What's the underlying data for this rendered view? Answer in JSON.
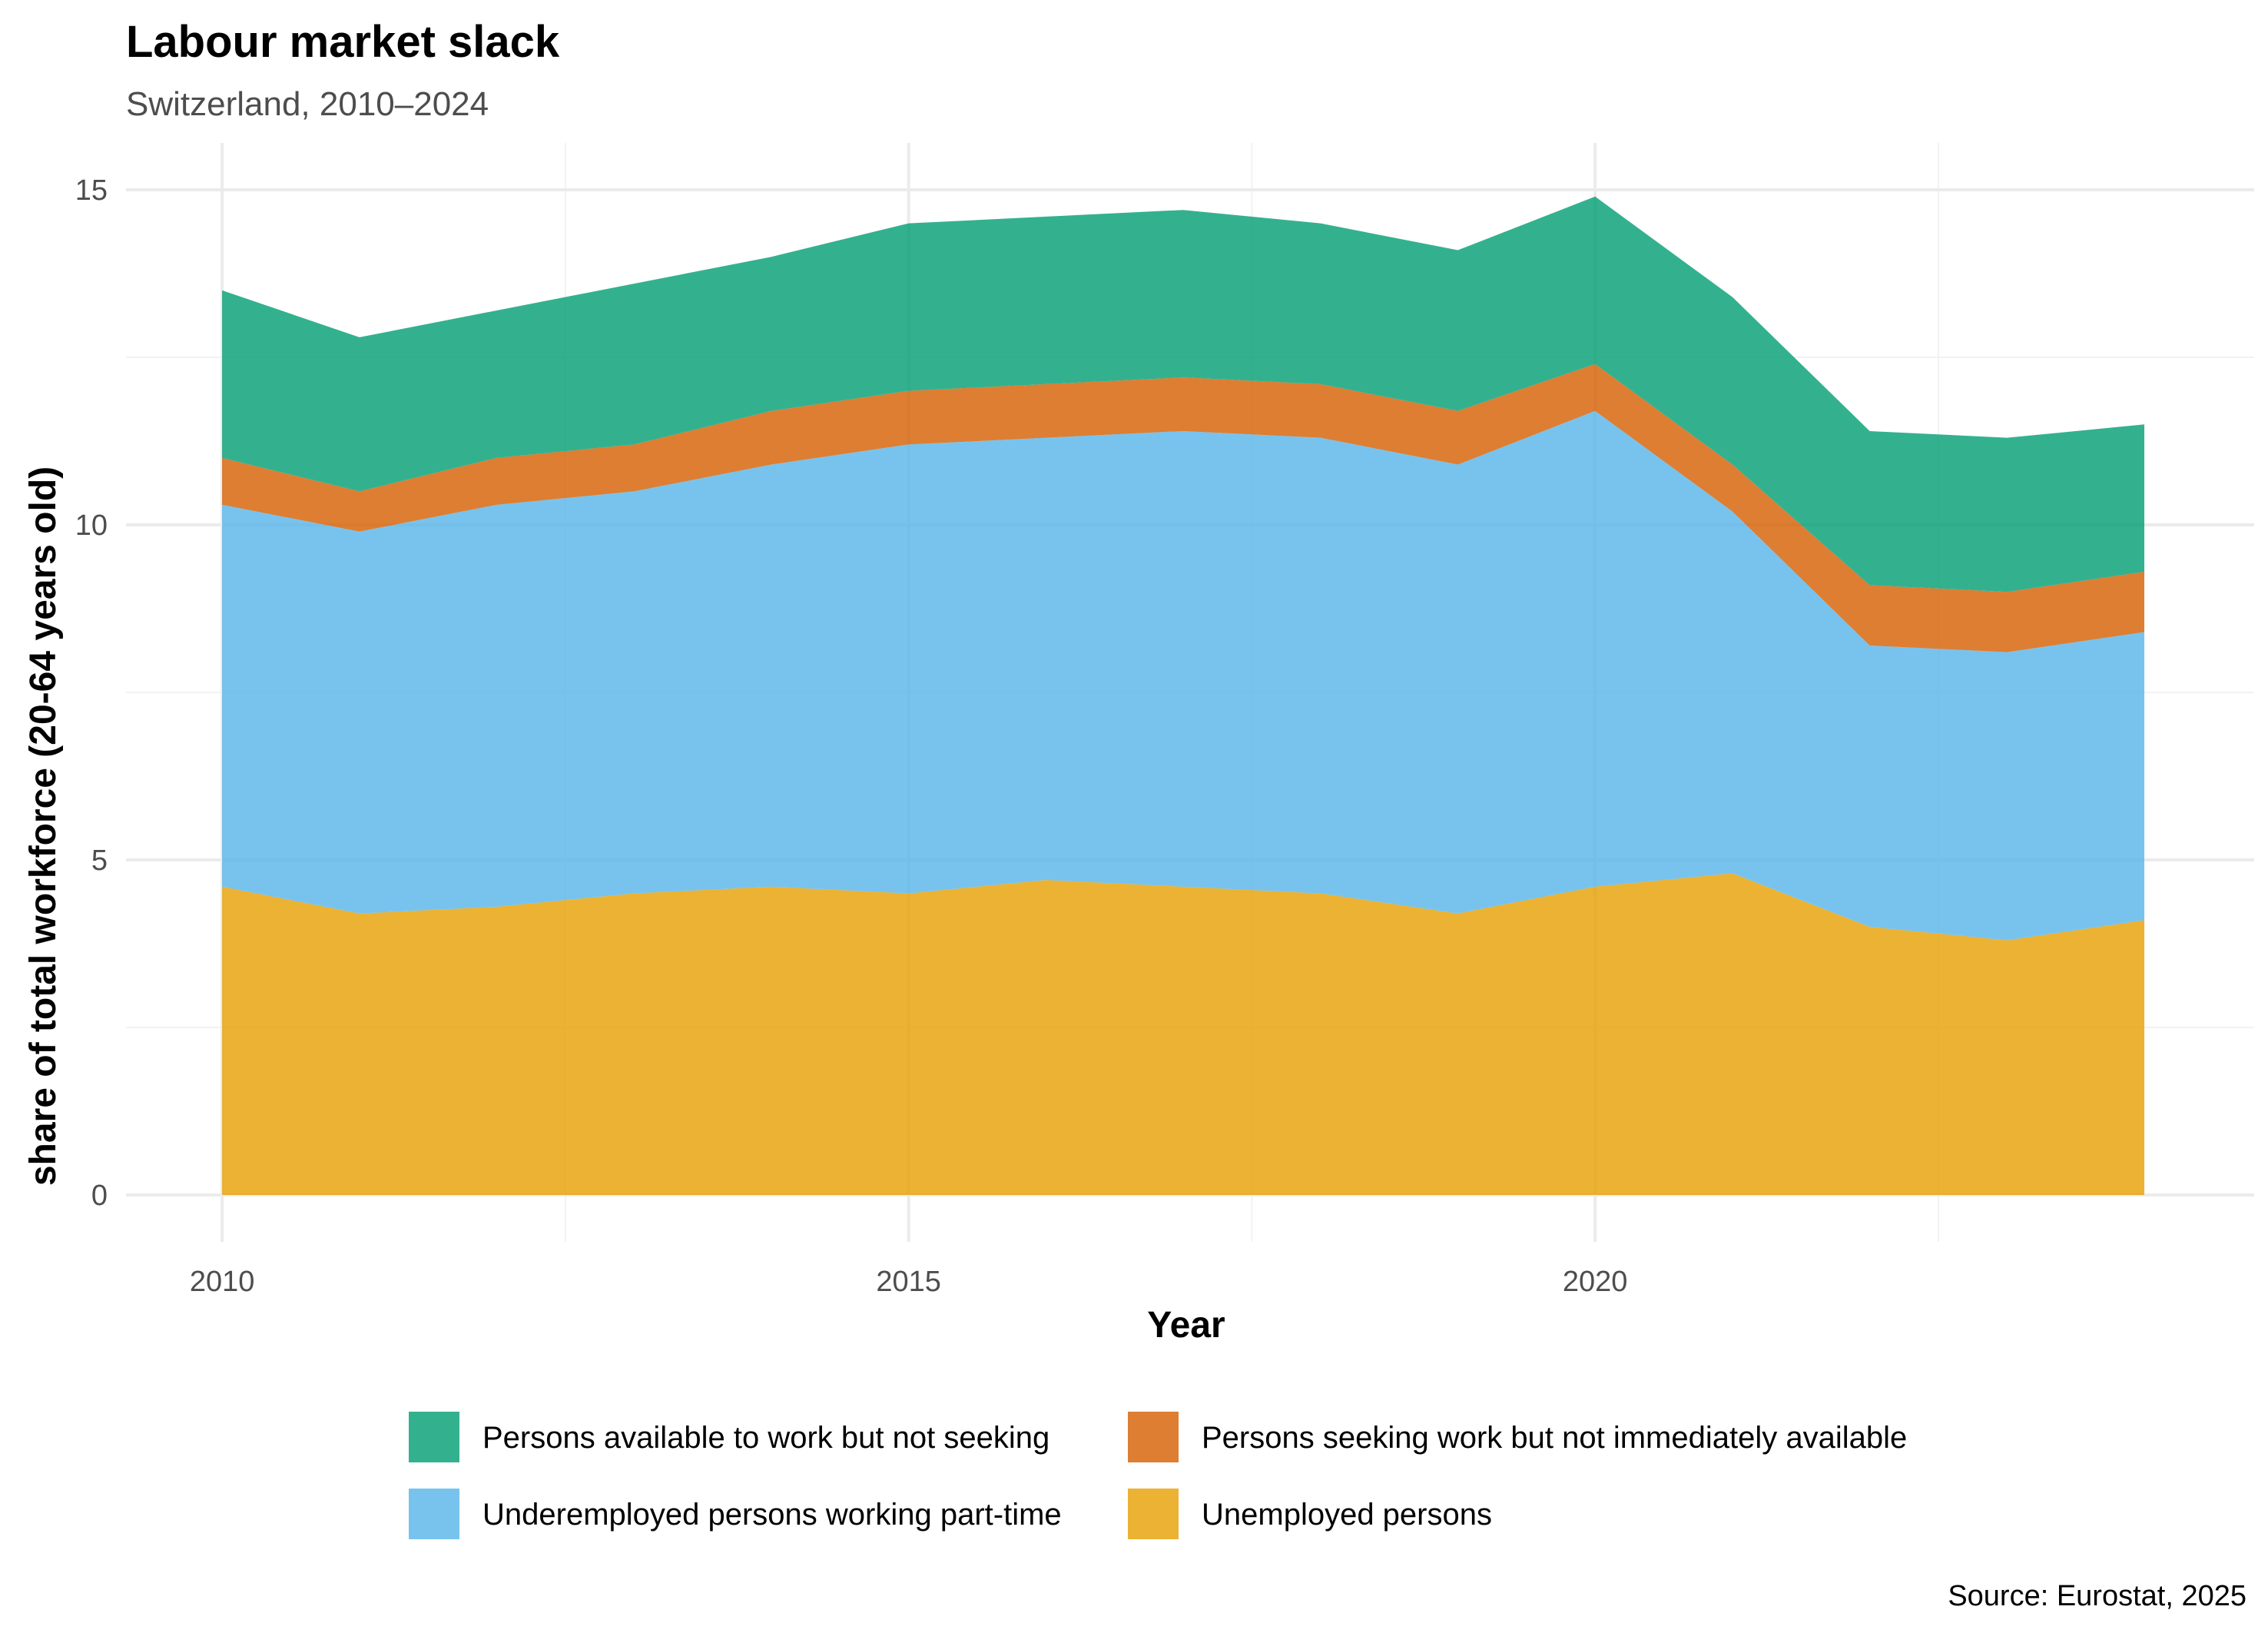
{
  "chart_data": {
    "type": "area",
    "stacked": true,
    "title": "Labour market slack",
    "subtitle": "Switzerland, 2010–2024",
    "xlabel": "Year",
    "ylabel": "share of total workforce (20-64 years old)",
    "caption": "Source: Eurostat, 2025",
    "x": [
      2010,
      2011,
      2012,
      2013,
      2014,
      2015,
      2016,
      2017,
      2018,
      2019,
      2020,
      2021,
      2022,
      2023,
      2024
    ],
    "x_ticks": [
      "2010",
      "2015",
      "2020"
    ],
    "y_ticks": [
      "0",
      "5",
      "10",
      "15"
    ],
    "xlim": [
      2009.3,
      2024.8
    ],
    "ylim": [
      -0.7,
      15.7
    ],
    "grid": true,
    "legend_position": "bottom",
    "series": [
      {
        "name": "Unemployed persons",
        "color": "#E69F00",
        "values": [
          4.6,
          4.2,
          4.3,
          4.5,
          4.6,
          4.5,
          4.7,
          4.6,
          4.5,
          4.2,
          4.6,
          4.8,
          4.0,
          3.8,
          4.1
        ]
      },
      {
        "name": "Underemployed persons working part-time",
        "color": "#56B4E9",
        "values": [
          5.7,
          5.7,
          6.0,
          6.0,
          6.3,
          6.7,
          6.6,
          6.8,
          6.8,
          6.7,
          7.1,
          5.4,
          4.2,
          4.3,
          4.3
        ]
      },
      {
        "name": "Persons seeking work but not immediately available",
        "color": "#D55E00",
        "values": [
          0.7,
          0.6,
          0.7,
          0.7,
          0.8,
          0.8,
          0.8,
          0.8,
          0.8,
          0.8,
          0.7,
          0.7,
          0.9,
          0.9,
          0.9
        ]
      },
      {
        "name": "Persons available to work but not seeking",
        "color": "#009E73",
        "values": [
          2.5,
          2.3,
          2.2,
          2.4,
          2.3,
          2.5,
          2.5,
          2.5,
          2.4,
          2.4,
          2.5,
          2.5,
          2.3,
          2.3,
          2.2
        ]
      }
    ],
    "legend_order": [
      "Persons available to work but not seeking",
      "Persons seeking work but not immediately available",
      "Underemployed persons working part-time",
      "Unemployed persons"
    ]
  }
}
